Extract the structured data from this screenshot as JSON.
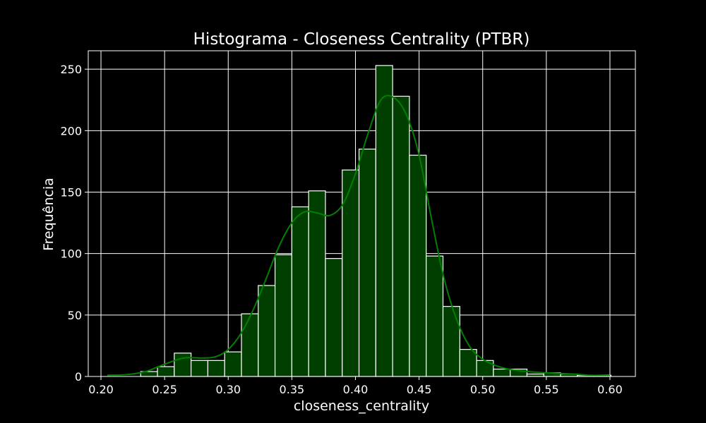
{
  "chart_data": {
    "type": "bar",
    "title": "Histograma - Closeness Centrality (PTBR)",
    "xlabel": "closeness_centrality",
    "ylabel": "Frequência",
    "xlim": [
      0.19,
      0.62
    ],
    "ylim": [
      0,
      265
    ],
    "grid": true,
    "xticks": [
      {
        "value": 0.2,
        "label": "0.20"
      },
      {
        "value": 0.25,
        "label": "0.25"
      },
      {
        "value": 0.3,
        "label": "0.30"
      },
      {
        "value": 0.35,
        "label": "0.35"
      },
      {
        "value": 0.4,
        "label": "0.40"
      },
      {
        "value": 0.45,
        "label": "0.45"
      },
      {
        "value": 0.5,
        "label": "0.50"
      },
      {
        "value": 0.55,
        "label": "0.55"
      },
      {
        "value": 0.6,
        "label": "0.60"
      }
    ],
    "yticks": [
      {
        "value": 0,
        "label": "0"
      },
      {
        "value": 50,
        "label": "50"
      },
      {
        "value": 100,
        "label": "100"
      },
      {
        "value": 150,
        "label": "150"
      },
      {
        "value": 200,
        "label": "200"
      },
      {
        "value": 250,
        "label": "250"
      }
    ],
    "bins": [
      {
        "start": 0.2048,
        "end": 0.218,
        "count": 0
      },
      {
        "start": 0.218,
        "end": 0.2312,
        "count": 0
      },
      {
        "start": 0.2312,
        "end": 0.2444,
        "count": 4
      },
      {
        "start": 0.2444,
        "end": 0.2576,
        "count": 8
      },
      {
        "start": 0.2576,
        "end": 0.2708,
        "count": 19
      },
      {
        "start": 0.2708,
        "end": 0.284,
        "count": 13
      },
      {
        "start": 0.284,
        "end": 0.2972,
        "count": 13
      },
      {
        "start": 0.2972,
        "end": 0.3104,
        "count": 20
      },
      {
        "start": 0.3104,
        "end": 0.3236,
        "count": 51
      },
      {
        "start": 0.3236,
        "end": 0.3368,
        "count": 74
      },
      {
        "start": 0.3368,
        "end": 0.35,
        "count": 99
      },
      {
        "start": 0.35,
        "end": 0.3632,
        "count": 138
      },
      {
        "start": 0.3632,
        "end": 0.3764,
        "count": 151
      },
      {
        "start": 0.3764,
        "end": 0.3896,
        "count": 96
      },
      {
        "start": 0.3896,
        "end": 0.4028,
        "count": 168
      },
      {
        "start": 0.4028,
        "end": 0.416,
        "count": 185
      },
      {
        "start": 0.416,
        "end": 0.4292,
        "count": 253
      },
      {
        "start": 0.4292,
        "end": 0.4424,
        "count": 228
      },
      {
        "start": 0.4424,
        "end": 0.4556,
        "count": 180
      },
      {
        "start": 0.4556,
        "end": 0.4688,
        "count": 98
      },
      {
        "start": 0.4688,
        "end": 0.482,
        "count": 57
      },
      {
        "start": 0.482,
        "end": 0.4952,
        "count": 22
      },
      {
        "start": 0.4952,
        "end": 0.5084,
        "count": 13
      },
      {
        "start": 0.5084,
        "end": 0.5216,
        "count": 6
      },
      {
        "start": 0.5216,
        "end": 0.5348,
        "count": 6
      },
      {
        "start": 0.5348,
        "end": 0.548,
        "count": 2
      },
      {
        "start": 0.548,
        "end": 0.5612,
        "count": 3
      },
      {
        "start": 0.5612,
        "end": 0.5744,
        "count": 2
      },
      {
        "start": 0.5744,
        "end": 0.5876,
        "count": 1
      },
      {
        "start": 0.5876,
        "end": 0.6008,
        "count": 1
      }
    ],
    "kde": [
      [
        0.205,
        1
      ],
      [
        0.22,
        1.5
      ],
      [
        0.235,
        4
      ],
      [
        0.25,
        10
      ],
      [
        0.265,
        15
      ],
      [
        0.28,
        15
      ],
      [
        0.29,
        16
      ],
      [
        0.3,
        22
      ],
      [
        0.31,
        35
      ],
      [
        0.32,
        55
      ],
      [
        0.33,
        80
      ],
      [
        0.34,
        106
      ],
      [
        0.35,
        125
      ],
      [
        0.36,
        134
      ],
      [
        0.37,
        133
      ],
      [
        0.38,
        131
      ],
      [
        0.39,
        140
      ],
      [
        0.4,
        165
      ],
      [
        0.41,
        198
      ],
      [
        0.42,
        225
      ],
      [
        0.43,
        227
      ],
      [
        0.44,
        213
      ],
      [
        0.45,
        180
      ],
      [
        0.46,
        127
      ],
      [
        0.47,
        78
      ],
      [
        0.48,
        45
      ],
      [
        0.49,
        24
      ],
      [
        0.5,
        14
      ],
      [
        0.51,
        9
      ],
      [
        0.52,
        6
      ],
      [
        0.535,
        4
      ],
      [
        0.55,
        3
      ],
      [
        0.57,
        2
      ],
      [
        0.585,
        1
      ],
      [
        0.6,
        0.5
      ]
    ],
    "colors": {
      "background": "#000000",
      "bar_fill": "#003f00",
      "bar_edge": "#ffffff",
      "kde_line": "#008000",
      "grid": "#ffffff",
      "text": "#ffffff"
    }
  }
}
